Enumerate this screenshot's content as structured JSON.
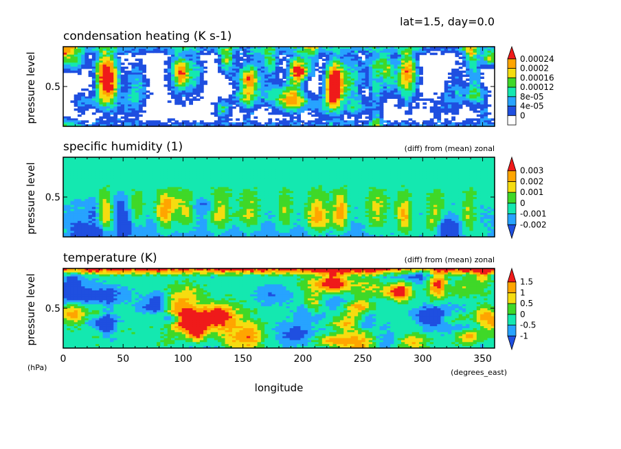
{
  "figure": {
    "header": "lat=1.5, day=0.0",
    "x_label": "longitude",
    "x_units": "(degrees_east)",
    "y_units": "(hPa)"
  },
  "chart_data": [
    {
      "type": "heatmap",
      "title": "condensation heating (K s-1)",
      "subtitle": "",
      "xlabel": "longitude",
      "ylabel": "pressure level",
      "xlim": [
        0,
        360
      ],
      "x_ticks": [
        "0",
        "50",
        "100",
        "150",
        "200",
        "250",
        "300",
        "350"
      ],
      "y_ticks": [
        "0.5"
      ],
      "colorbar": {
        "levels": [
          "0",
          "4e-05",
          "8e-05",
          "0.00012",
          "0.00016",
          "0.0002",
          "0.00024"
        ],
        "colors": [
          "#ffffff",
          "#1f4fe0",
          "#27a3ff",
          "#14e8b0",
          "#3fd828",
          "#f5dc10",
          "#ffa500",
          "#ef1a1a"
        ]
      },
      "field_seed": 11,
      "field_style": "convective"
    },
    {
      "type": "heatmap",
      "title": "specific humidity (1)",
      "subtitle": "(diff) from (mean) zonal",
      "xlabel": "longitude",
      "ylabel": "pressure level",
      "xlim": [
        0,
        360
      ],
      "x_ticks": [
        "0",
        "50",
        "100",
        "150",
        "200",
        "250",
        "300",
        "350"
      ],
      "y_ticks": [
        "0.5"
      ],
      "colorbar": {
        "levels": [
          "-0.002",
          "-0.001",
          "0",
          "0.001",
          "0.002",
          "0.003"
        ],
        "colors": [
          "#1f4fe0",
          "#27a3ff",
          "#14e8b0",
          "#3fd828",
          "#f5dc10",
          "#ffa500",
          "#ef1a1a"
        ]
      },
      "field_seed": 23,
      "field_style": "humidity"
    },
    {
      "type": "heatmap",
      "title": "temperature (K)",
      "subtitle": "(diff) from (mean) zonal",
      "xlabel": "longitude",
      "ylabel": "pressure level",
      "xlim": [
        0,
        360
      ],
      "x_ticks": [
        "0",
        "50",
        "100",
        "150",
        "200",
        "250",
        "300",
        "350"
      ],
      "y_ticks": [
        "0.5"
      ],
      "colorbar": {
        "levels": [
          "-1",
          "-0.5",
          "0",
          "0.5",
          "1",
          "1.5"
        ],
        "colors": [
          "#1f4fe0",
          "#27a3ff",
          "#14e8b0",
          "#3fd828",
          "#f5dc10",
          "#ffa500",
          "#ef1a1a"
        ]
      },
      "field_seed": 37,
      "field_style": "temperature"
    }
  ]
}
